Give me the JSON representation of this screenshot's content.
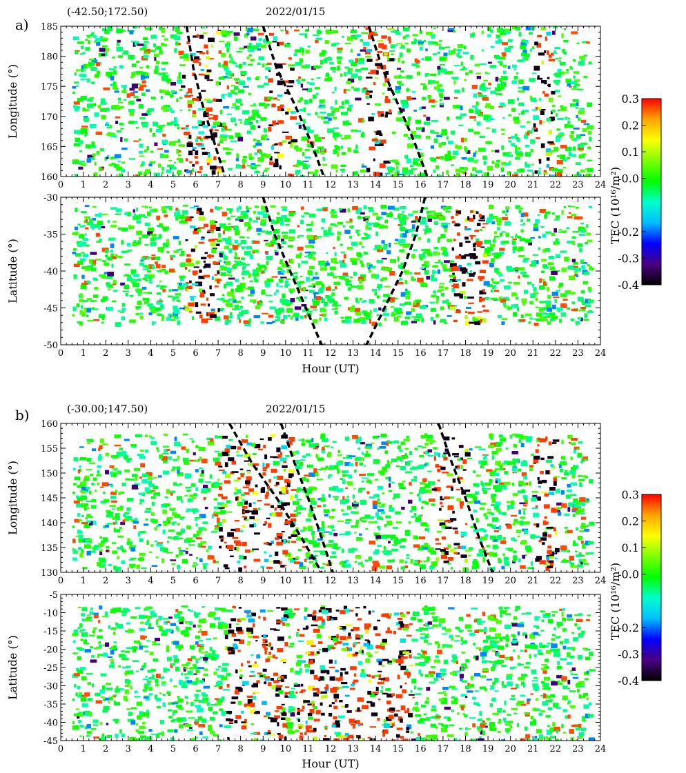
{
  "chart_data": [
    {
      "type": "heatmap",
      "panel_tag": "a)",
      "location": "(-42.50;172.50)",
      "date": "2022/01/15",
      "colorbar": {
        "label": "TEC (10¹⁶/m²)",
        "range": [
          -0.4,
          0.3
        ],
        "ticks": [
          "0.3",
          "0.2",
          "0.1",
          "-0.0",
          "-0.2",
          "-0.3",
          "-0.4"
        ],
        "tick_values": [
          0.3,
          0.2,
          0.1,
          0.0,
          -0.2,
          -0.3,
          -0.4
        ],
        "colormap": [
          "#000000",
          "#4b0082",
          "#0000ff",
          "#00bfff",
          "#00ffcc",
          "#00ff00",
          "#7fff00",
          "#ffff00",
          "#ffa500",
          "#ff0000"
        ]
      },
      "subplots": [
        {
          "ylabel": "Longitude (°)",
          "xlabel": "",
          "xlim": [
            0,
            24
          ],
          "ylim": [
            160,
            185
          ],
          "xticks": [
            "0",
            "1",
            "2",
            "3",
            "4",
            "5",
            "6",
            "7",
            "8",
            "9",
            "10",
            "11",
            "12",
            "13",
            "14",
            "15",
            "16",
            "17",
            "18",
            "19",
            "20",
            "21",
            "22",
            "23",
            "24"
          ],
          "yticks": [
            "160",
            "165",
            "170",
            "175",
            "180",
            "185"
          ],
          "data_x_range": [
            0.5,
            23.5
          ],
          "data_y_range": [
            160,
            185
          ],
          "active_bands": [
            [
              5.3,
              7.0
            ],
            [
              9.2,
              10.3
            ],
            [
              13.4,
              14.6
            ],
            [
              21.0,
              21.8
            ]
          ],
          "dashed_curves": [
            {
              "x": [
                5.6,
                5.9,
                6.3,
                6.8,
                7.3
              ],
              "y": [
                185,
                178,
                172,
                166,
                160
              ]
            },
            {
              "x": [
                9.0,
                9.6,
                10.4,
                11.1,
                11.7
              ],
              "y": [
                185,
                178,
                172,
                166,
                160
              ]
            },
            {
              "x": [
                13.7,
                14.3,
                15.0,
                15.7,
                16.3
              ],
              "y": [
                185,
                178,
                172,
                166,
                160
              ]
            }
          ]
        },
        {
          "ylabel": "Latitude (°)",
          "xlabel": "Hour (UT)",
          "xlim": [
            0,
            24
          ],
          "ylim": [
            -50,
            -30
          ],
          "xticks": [
            "0",
            "1",
            "2",
            "3",
            "4",
            "5",
            "6",
            "7",
            "8",
            "9",
            "10",
            "11",
            "12",
            "13",
            "14",
            "15",
            "16",
            "17",
            "18",
            "19",
            "20",
            "21",
            "22",
            "23",
            "24"
          ],
          "yticks": [
            "-50",
            "-45",
            "-40",
            "-35",
            "-30"
          ],
          "data_x_range": [
            0.5,
            23.5
          ],
          "data_y_range": [
            -47,
            -31
          ],
          "active_bands": [
            [
              5.5,
              7.0
            ],
            [
              17.3,
              18.8
            ]
          ],
          "dashed_curves": [
            {
              "x": [
                9.0,
                9.5,
                10.2,
                10.9,
                11.6,
                12.6,
                13.6,
                14.4,
                15.2,
                15.8,
                16.2
              ],
              "y": [
                -30,
                -35,
                -40,
                -45,
                -50,
                -50.5,
                -50,
                -45,
                -40,
                -35,
                -30
              ]
            }
          ]
        }
      ]
    },
    {
      "type": "heatmap",
      "panel_tag": "b)",
      "location": "(-30.00;147.50)",
      "date": "2022/01/15",
      "colorbar": {
        "label": "TEC (10¹⁶/m²)",
        "range": [
          -0.4,
          0.3
        ],
        "ticks": [
          "0.3",
          "0.2",
          "0.1",
          "-0.0",
          "-0.2",
          "-0.3",
          "-0.4"
        ],
        "tick_values": [
          0.3,
          0.2,
          0.1,
          0.0,
          -0.2,
          -0.3,
          -0.4
        ],
        "colormap": [
          "#000000",
          "#4b0082",
          "#0000ff",
          "#00bfff",
          "#00ffcc",
          "#00ff00",
          "#7fff00",
          "#ffff00",
          "#ffa500",
          "#ff0000"
        ]
      },
      "subplots": [
        {
          "ylabel": "Longitude (°)",
          "xlabel": "",
          "xlim": [
            0,
            24
          ],
          "ylim": [
            130,
            160
          ],
          "xticks": [
            "0",
            "1",
            "2",
            "3",
            "4",
            "5",
            "6",
            "7",
            "8",
            "9",
            "10",
            "11",
            "12",
            "13",
            "14",
            "15",
            "16",
            "17",
            "18",
            "19",
            "20",
            "21",
            "22",
            "23",
            "24"
          ],
          "yticks": [
            "130",
            "135",
            "140",
            "145",
            "150",
            "155",
            "160"
          ],
          "data_x_range": [
            0.5,
            23.5
          ],
          "data_y_range": [
            131,
            158
          ],
          "active_bands": [
            [
              7.0,
              10.3
            ],
            [
              16.5,
              18.0
            ],
            [
              21.0,
              22.0
            ]
          ],
          "dashed_curves": [
            {
              "x": [
                7.5,
                8.5,
                9.6,
                10.7,
                11.6
              ],
              "y": [
                160,
                152,
                145,
                137,
                130
              ]
            },
            {
              "x": [
                9.8,
                10.4,
                11.0,
                11.6,
                12.1
              ],
              "y": [
                160,
                152,
                145,
                137,
                130
              ]
            },
            {
              "x": [
                16.8,
                17.4,
                18.0,
                18.6,
                19.2
              ],
              "y": [
                160,
                152,
                145,
                137,
                130
              ]
            }
          ]
        },
        {
          "ylabel": "Latitude (°)",
          "xlabel": "Hour (UT)",
          "xlim": [
            0,
            24
          ],
          "ylim": [
            -45,
            -5
          ],
          "xticks": [
            "0",
            "1",
            "2",
            "3",
            "4",
            "5",
            "6",
            "7",
            "8",
            "9",
            "10",
            "11",
            "12",
            "13",
            "14",
            "15",
            "16",
            "17",
            "18",
            "19",
            "20",
            "21",
            "22",
            "23",
            "24"
          ],
          "yticks": [
            "-45",
            "-40",
            "-35",
            "-30",
            "-25",
            "-20",
            "-15",
            "-10",
            "-5"
          ],
          "data_x_range": [
            0.5,
            23.5
          ],
          "data_y_range": [
            -45,
            -8
          ],
          "active_bands": [
            [
              7.3,
              10.0
            ],
            [
              10.5,
              15.5
            ]
          ],
          "dashed_curves": []
        }
      ]
    }
  ]
}
